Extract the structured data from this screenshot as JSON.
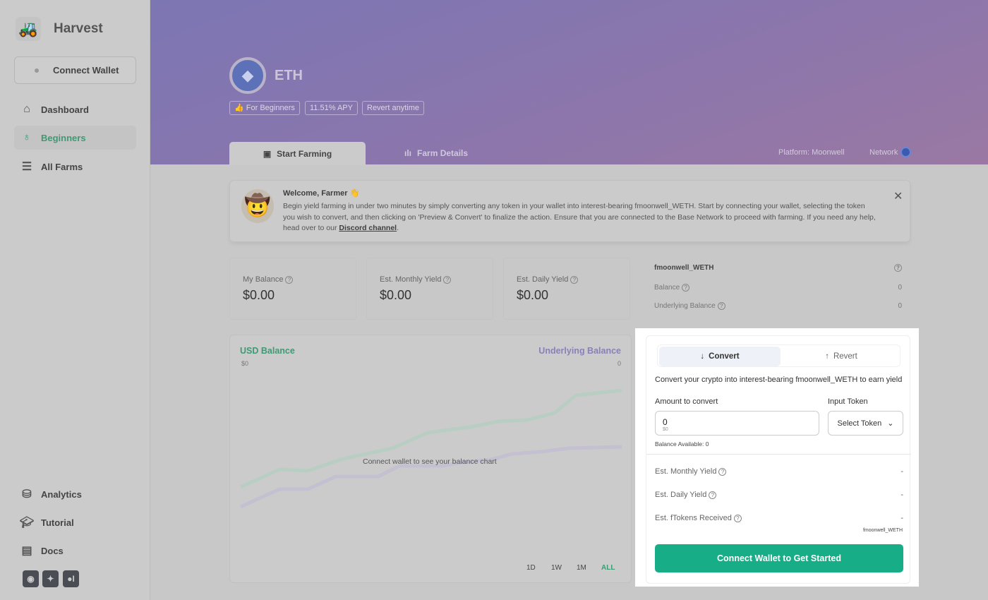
{
  "sidebar": {
    "brand": "Harvest",
    "connect_wallet": "Connect Wallet",
    "nav": [
      {
        "label": "Dashboard",
        "icon": "house-icon"
      },
      {
        "label": "Beginners",
        "icon": "piggy-bank-icon",
        "active": true
      },
      {
        "label": "All Farms",
        "icon": "coins-icon"
      }
    ],
    "bottom": [
      {
        "label": "Analytics",
        "icon": "database-icon"
      },
      {
        "label": "Tutorial",
        "icon": "graduation-cap-icon"
      },
      {
        "label": "Docs",
        "icon": "document-icon"
      }
    ],
    "socials": [
      "discord-icon",
      "twitter-icon",
      "medium-icon"
    ]
  },
  "header": {
    "token": "ETH",
    "badges": [
      "For Beginners",
      "11.51% APY",
      "Revert anytime"
    ],
    "tabs": [
      "Start Farming",
      "Farm Details"
    ],
    "platform": "Platform: Moonwell",
    "network": "Network"
  },
  "welcome": {
    "title": "Welcome, Farmer 👋",
    "body": "Begin yield farming in under two minutes by simply converting any token in your wallet into interest-bearing fmoonwell_WETH. Start by connecting your wallet, selecting the token you wish to convert, and then clicking on 'Preview & Convert' to finalize the action. Ensure that you are connected to the Base Network to proceed with farming. If you need any help, head over to our ",
    "link": "Discord channel",
    "end": "."
  },
  "stats": [
    {
      "label": "My Balance",
      "value": "$0.00"
    },
    {
      "label": "Est. Monthly Yield",
      "value": "$0.00"
    },
    {
      "label": "Est. Daily Yield",
      "value": "$0.00"
    }
  ],
  "ftoken": {
    "name": "fmoonwell_WETH",
    "rows": [
      {
        "label": "Balance",
        "value": "0"
      },
      {
        "label": "Underlying Balance",
        "value": "0"
      }
    ]
  },
  "chart": {
    "left_title": "USD Balance",
    "right_title": "Underlying Balance",
    "left_value": "$0",
    "right_value": "0",
    "message": "Connect wallet to see your balance chart",
    "ranges": [
      "1D",
      "1W",
      "1M",
      "ALL"
    ],
    "active_range": "ALL",
    "colors": {
      "usd": "#3f9a73",
      "underlying": "#8a80b8"
    }
  },
  "panel": {
    "tabs": [
      "Convert",
      "Revert"
    ],
    "description": "Convert your crypto into interest-bearing fmoonwell_WETH to earn yield",
    "amount_label": "Amount to convert",
    "amount_value": "0",
    "amount_usd": "$0",
    "token_label": "Input Token",
    "token_select": "Select Token",
    "balance_label": "Balance Available:",
    "balance_value": "0",
    "estimates": [
      {
        "label": "Est. Monthly Yield",
        "value": "-"
      },
      {
        "label": "Est. Daily Yield",
        "value": "-"
      },
      {
        "label": "Est. fTokens Received",
        "value": "-"
      }
    ],
    "ftoken_unit": "fmoonwell_WETH",
    "cta": "Connect Wallet to Get Started",
    "accent": "#17ad87"
  }
}
